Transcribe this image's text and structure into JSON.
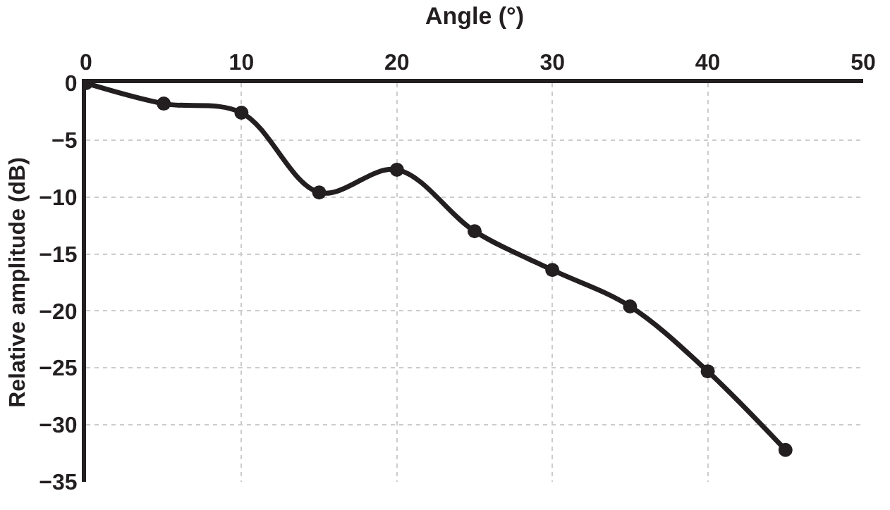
{
  "chart_data": {
    "type": "line",
    "xlabel": "Angle (°)",
    "ylabel": "Relative amplitude (dB)",
    "x": [
      0,
      5,
      10,
      15,
      20,
      25,
      30,
      35,
      40,
      45
    ],
    "series": [
      {
        "color": "#231f20",
        "values": [
          0,
          -1.8,
          -2.6,
          -9.6,
          -7.6,
          -13.0,
          -16.4,
          -19.6,
          -25.3,
          -32.2
        ]
      }
    ],
    "xlim": [
      0,
      50
    ],
    "xticks": [
      0,
      10,
      20,
      30,
      40,
      50
    ],
    "ylim": [
      -35,
      0
    ],
    "yticks": [
      {
        "value": -35,
        "label": "−35"
      },
      {
        "value": -30,
        "label": "−30"
      },
      {
        "value": -25,
        "label": "−25"
      },
      {
        "value": -20,
        "label": "−20"
      },
      {
        "value": -15,
        "label": "−15"
      },
      {
        "value": -10,
        "label": "−10"
      },
      {
        "value": -5,
        "label": "−5"
      },
      0
    ],
    "grid": true,
    "marker": "circle",
    "line_style": "solid"
  }
}
